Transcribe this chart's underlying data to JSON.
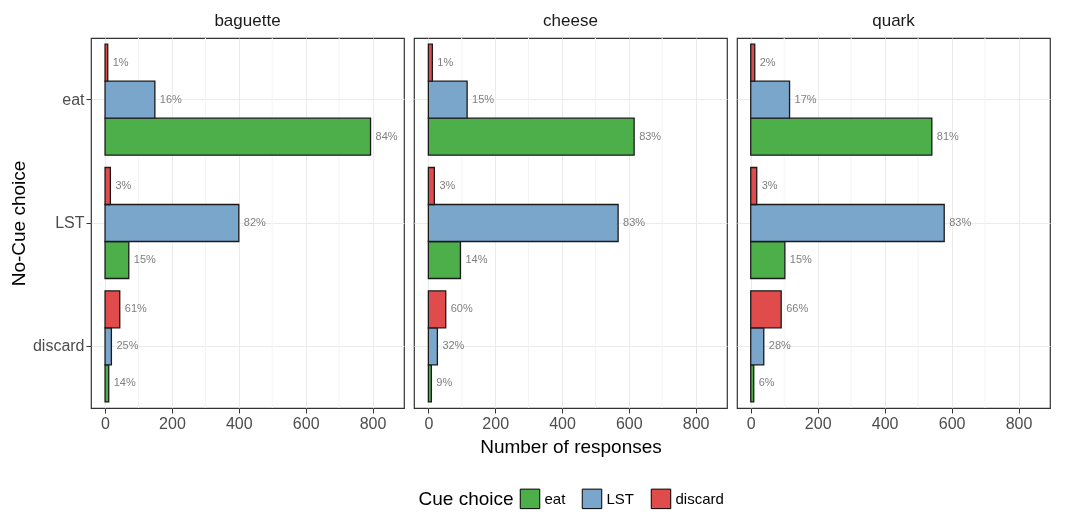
{
  "chart_data": [
    {
      "type": "bar",
      "orientation": "horizontal",
      "title": "baguette",
      "ylabel": "No-Cue choice",
      "categories": [
        "eat",
        "LST",
        "discard"
      ],
      "xlim": [
        -42,
        894
      ],
      "xticks": [
        0,
        {
          "value": 100,
          "label": null
        },
        200,
        {
          "value": 300,
          "label": null
        },
        400,
        {
          "value": 500,
          "label": null
        },
        600,
        {
          "value": 700,
          "label": null
        },
        800
      ],
      "grid": true,
      "legend": "bottom",
      "series": [
        {
          "name": "eat",
          "color": "#4daf4a",
          "values": [
            794,
            71,
            11
          ]
        },
        {
          "name": "LST",
          "color": "#7ba6cc",
          "values": [
            149,
            400,
            19
          ]
        },
        {
          "name": "discard",
          "color": "#e04b4c",
          "values": [
            8,
            16,
            44
          ]
        }
      ],
      "annotations": [
        "84%",
        "15%",
        "14%",
        "16%",
        "82%",
        "25%",
        "1%",
        "3%",
        "61%"
      ]
    },
    {
      "type": "bar",
      "orientation": "horizontal",
      "title": "cheese",
      "xlabel": "Number of responses",
      "legend_title": "Cue choice",
      "legend": "bottom",
      "tick_labels": "x",
      "categories": [
        "eat",
        "LST",
        "discard"
      ],
      "xlim": [
        -43,
        894
      ],
      "xticks": [
        0,
        {
          "value": 100,
          "label": null
        },
        200,
        {
          "value": 300,
          "label": null
        },
        400,
        {
          "value": 500,
          "label": null
        },
        600,
        {
          "value": 700,
          "label": null
        },
        800
      ],
      "grid": true,
      "series": [
        {
          "name": "eat",
          "color": "#4daf4a",
          "values": [
            616,
            96,
            9
          ]
        },
        {
          "name": "LST",
          "color": "#7ba6cc",
          "values": [
            116,
            568,
            27
          ]
        },
        {
          "name": "discard",
          "color": "#e04b4c",
          "values": [
            12,
            18,
            52
          ]
        }
      ],
      "annotations": [
        "83%",
        "14%",
        "9%",
        "15%",
        "83%",
        "32%",
        "1%",
        "3%",
        "60%"
      ]
    },
    {
      "type": "bar",
      "orientation": "horizontal",
      "title": "quark",
      "tick_labels": "x",
      "categories": [
        "eat",
        "LST",
        "discard"
      ],
      "xlim": [
        -41,
        894
      ],
      "xticks": [
        0,
        {
          "value": 100,
          "label": null
        },
        200,
        {
          "value": 300,
          "label": null
        },
        400,
        {
          "value": 500,
          "label": null
        },
        600,
        {
          "value": 700,
          "label": null
        },
        800
      ],
      "grid": true,
      "legend": "bottom",
      "series": [
        {
          "name": "eat",
          "color": "#4daf4a",
          "values": [
            541,
            102,
            9
          ]
        },
        {
          "name": "LST",
          "color": "#7ba6cc",
          "values": [
            116,
            578,
            39
          ]
        },
        {
          "name": "discard",
          "color": "#e04b4c",
          "values": [
            12,
            18,
            91
          ]
        }
      ],
      "annotations": [
        "81%",
        "15%",
        "6%",
        "17%",
        "83%",
        "28%",
        "2%",
        "3%",
        "66%"
      ]
    }
  ]
}
